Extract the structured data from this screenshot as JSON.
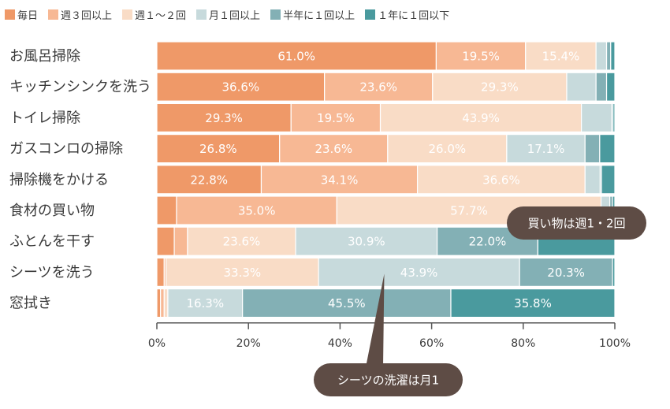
{
  "chart_data": {
    "type": "bar",
    "orientation": "horizontal",
    "stacked": true,
    "title": "",
    "xlabel": "",
    "ylabel": "",
    "xlim": [
      0,
      100
    ],
    "xticks": [
      "0%",
      "20%",
      "40%",
      "60%",
      "80%",
      "100%"
    ],
    "categories": [
      "お風呂掃除",
      "キッチンシンクを洗う",
      "トイレ掃除",
      "ガスコンロの掃除",
      "掃除機をかける",
      "食材の買い物",
      "ふとんを干す",
      "シーツを洗う",
      "窓拭き"
    ],
    "series": [
      {
        "name": "毎日",
        "color": "#ef9968",
        "values": [
          61.0,
          36.6,
          29.3,
          26.8,
          22.8,
          4.3,
          3.8,
          1.6,
          0.8
        ]
      },
      {
        "name": "週３回以上",
        "color": "#f7b894",
        "values": [
          19.5,
          23.6,
          19.5,
          23.6,
          34.1,
          35.0,
          2.9,
          0.4,
          0.8
        ]
      },
      {
        "name": "週１～２回",
        "color": "#f9dcc6",
        "values": [
          15.4,
          29.3,
          43.9,
          26.0,
          36.6,
          57.7,
          23.6,
          33.3,
          0.8
        ]
      },
      {
        "name": "月１回以上",
        "color": "#c7dadc",
        "values": [
          2.3,
          6.4,
          6.6,
          17.1,
          3.3,
          1.9,
          30.9,
          43.9,
          16.3
        ]
      },
      {
        "name": "半年に１回以上",
        "color": "#83b0b5",
        "values": [
          0.9,
          2.3,
          0.3,
          3.2,
          0.3,
          0.6,
          22.0,
          20.3,
          45.5
        ]
      },
      {
        "name": "１年に１回以下",
        "color": "#4a9a9e",
        "values": [
          0.9,
          1.8,
          0.4,
          3.3,
          2.9,
          0.5,
          16.8,
          0.5,
          35.8
        ]
      }
    ],
    "data_labels": [
      [
        "61.0%",
        "19.5%",
        "15.4%",
        "",
        "",
        ""
      ],
      [
        "36.6%",
        "23.6%",
        "29.3%",
        "",
        "",
        ""
      ],
      [
        "29.3%",
        "19.5%",
        "43.9%",
        "",
        "",
        ""
      ],
      [
        "26.8%",
        "23.6%",
        "26.0%",
        "17.1%",
        "",
        ""
      ],
      [
        "22.8%",
        "34.1%",
        "36.6%",
        "",
        "",
        ""
      ],
      [
        "",
        "35.0%",
        "57.7%",
        "",
        "",
        ""
      ],
      [
        "",
        "",
        "23.6%",
        "30.9%",
        "22.0%",
        ""
      ],
      [
        "",
        "",
        "33.3%",
        "43.9%",
        "20.3%",
        ""
      ],
      [
        "",
        "",
        "",
        "16.3%",
        "45.5%",
        "35.8%"
      ]
    ],
    "annotations": [
      {
        "text": "買い物は週1・2回",
        "category": "食材の買い物",
        "value": 78
      },
      {
        "text": "シーツの洗濯は月1",
        "category": "シーツを洗う",
        "value": 50
      }
    ]
  }
}
